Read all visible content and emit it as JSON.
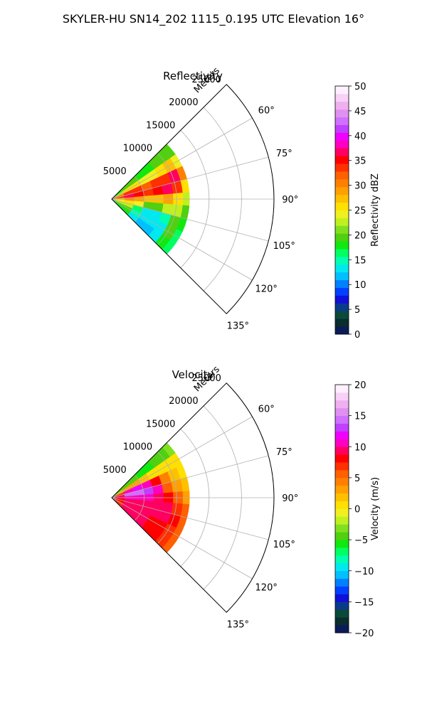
{
  "figure": {
    "title": "SKYLER-HU  SN14_202  1115_0.195 UTC Elevation 16°"
  },
  "chart_data": [
    {
      "type": "heatmap",
      "projection": "polar-sector",
      "title": "Reflectivity",
      "range_label": "Meters",
      "range_ticks": [
        5000,
        10000,
        15000,
        20000,
        25000
      ],
      "range_tick_labels": [
        "5000",
        "10000",
        "15000",
        "20000",
        "25000"
      ],
      "range_max": 25000,
      "data_range_max": 12000,
      "azimuth_range_deg": [
        45,
        135
      ],
      "azimuth_ticks": [
        60,
        75,
        90,
        105,
        120,
        135
      ],
      "azimuth_tick_labels": [
        "60°",
        "75°",
        "90°",
        "105°",
        "120°",
        "135°"
      ],
      "grid": true,
      "colorbar": {
        "label": "Reflectivity dBZ",
        "min": 0,
        "max": 50,
        "ticks": [
          0,
          5,
          10,
          15,
          20,
          25,
          30,
          35,
          40,
          45,
          50
        ],
        "tick_labels": [
          "0",
          "5",
          "10",
          "15",
          "20",
          "25",
          "30",
          "35",
          "40",
          "45",
          "50"
        ],
        "colors": [
          "#0b1b5a",
          "#0a2d2d",
          "#0a4a3a",
          "#0a3a8a",
          "#1010d8",
          "#0040ff",
          "#0080ff",
          "#00c0ff",
          "#00e8f0",
          "#00ffb0",
          "#00ff60",
          "#10e810",
          "#50d010",
          "#80e020",
          "#c0f020",
          "#f0f020",
          "#ffe000",
          "#ffc000",
          "#ffa000",
          "#ff8000",
          "#ff6000",
          "#ff3000",
          "#ff0000",
          "#ff0060",
          "#ff00c0",
          "#f000ff",
          "#c040ff",
          "#d070ff",
          "#e090f0",
          "#f0b0f0",
          "#f8d0f8",
          "#fff0ff"
        ]
      },
      "gates": {
        "range_edges": [
          0,
          2000,
          3500,
          5000,
          6500,
          8000,
          9500,
          11000,
          12000
        ],
        "azimuth_edges": [
          45,
          55,
          65,
          75,
          85,
          95,
          105,
          115,
          125,
          135
        ],
        "values": [
          [
            18,
            22,
            30,
            34,
            28,
            24,
            22,
            20,
            18
          ],
          [
            20,
            26,
            34,
            36,
            30,
            26,
            22,
            20,
            18
          ],
          [
            20,
            25,
            33,
            35,
            29,
            24,
            16,
            15,
            13
          ],
          [
            18,
            24,
            32,
            34,
            28,
            20,
            14,
            13,
            12
          ],
          [
            18,
            24,
            33,
            35,
            28,
            20,
            14,
            13,
            12
          ],
          [
            20,
            26,
            34,
            36,
            29,
            22,
            15,
            14,
            13
          ],
          [
            20,
            28,
            36,
            34,
            26,
            22,
            20,
            19,
            18
          ],
          [
            19,
            24,
            30,
            26,
            22,
            20,
            18,
            17,
            16
          ]
        ]
      }
    },
    {
      "type": "heatmap",
      "projection": "polar-sector",
      "title": "Velocity",
      "range_label": "Meters",
      "range_ticks": [
        5000,
        10000,
        15000,
        20000,
        25000
      ],
      "range_tick_labels": [
        "5000",
        "10000",
        "15000",
        "20000",
        "25000"
      ],
      "range_max": 25000,
      "data_range_max": 12000,
      "azimuth_range_deg": [
        45,
        135
      ],
      "azimuth_ticks": [
        60,
        75,
        90,
        105,
        120,
        135
      ],
      "azimuth_tick_labels": [
        "60°",
        "75°",
        "90°",
        "105°",
        "120°",
        "135°"
      ],
      "grid": true,
      "colorbar": {
        "label": "Velocity (m/s)",
        "min": -20,
        "max": 20,
        "ticks": [
          -20,
          -15,
          -10,
          -5,
          0,
          5,
          10,
          15,
          20
        ],
        "tick_labels": [
          "−20",
          "−15",
          "−10",
          "−5",
          "0",
          "5",
          "10",
          "15",
          "20"
        ],
        "colors": [
          "#0b1b5a",
          "#0a2d2d",
          "#0a4a3a",
          "#0a3a8a",
          "#1010d8",
          "#0040ff",
          "#0080ff",
          "#00c0ff",
          "#00e8f0",
          "#00ffb0",
          "#00ff60",
          "#10e810",
          "#50d010",
          "#80e020",
          "#c0f020",
          "#f0f020",
          "#ffe000",
          "#ffc000",
          "#ffa000",
          "#ff8000",
          "#ff6000",
          "#ff3000",
          "#ff0000",
          "#ff0060",
          "#ff00c0",
          "#f000ff",
          "#c040ff",
          "#d070ff",
          "#e090f0",
          "#f0b0f0",
          "#f8d0f8",
          "#fff0ff"
        ]
      },
      "gates": {
        "range_edges": [
          0,
          2000,
          3500,
          5000,
          6500,
          8000,
          9500,
          11000,
          12000
        ],
        "azimuth_edges": [
          45,
          55,
          65,
          75,
          85,
          95,
          105,
          115,
          125,
          135
        ],
        "values": [
          [
            -4,
            2,
            7,
            9,
            9,
            8,
            8,
            7,
            7
          ],
          [
            -5,
            3,
            10,
            14,
            10,
            9,
            9,
            9,
            9
          ],
          [
            -5,
            3,
            12,
            14,
            10,
            9,
            9,
            9,
            9
          ],
          [
            -6,
            2,
            10,
            13,
            10,
            9,
            9,
            9,
            9
          ],
          [
            -6,
            1,
            8,
            10,
            9,
            9,
            9,
            8,
            8
          ],
          [
            -5,
            0,
            4,
            6,
            8,
            9,
            9,
            8,
            8
          ],
          [
            -4,
            0,
            2,
            3,
            5,
            7,
            8,
            7,
            7
          ],
          [
            -3,
            0,
            1,
            2,
            3,
            5,
            6,
            6,
            6
          ]
        ]
      }
    }
  ]
}
